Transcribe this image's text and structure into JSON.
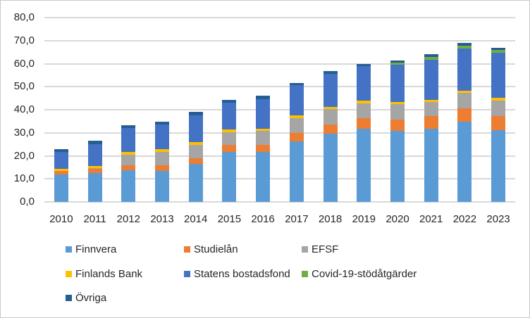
{
  "chart_data": {
    "type": "bar",
    "subtype": "stacked",
    "title": "",
    "xlabel": "",
    "ylabel": "",
    "categories": [
      "2010",
      "2011",
      "2012",
      "2013",
      "2014",
      "2015",
      "2016",
      "2017",
      "2018",
      "2019",
      "2020",
      "2021",
      "2022",
      "2023"
    ],
    "series": [
      {
        "name": "Finnvera",
        "color": "#5B9BD5",
        "values": [
          12.0,
          12.6,
          13.9,
          13.6,
          16.4,
          21.8,
          21.6,
          26.4,
          29.7,
          31.7,
          30.9,
          31.7,
          34.8,
          31.3
        ]
      },
      {
        "name": "Studielån",
        "color": "#ED7D31",
        "values": [
          1.5,
          1.7,
          2.1,
          2.2,
          2.4,
          2.8,
          3.2,
          3.4,
          3.8,
          4.8,
          4.9,
          5.5,
          5.9,
          6.1
        ]
      },
      {
        "name": "EFSF",
        "color": "#A5A5A5",
        "values": [
          0,
          0.5,
          4.5,
          6.0,
          6.0,
          5.7,
          6.1,
          6.6,
          6.7,
          6.4,
          6.6,
          6.1,
          6.5,
          6.7
        ]
      },
      {
        "name": "Finlands Bank",
        "color": "#FFC000",
        "values": [
          1.0,
          0.9,
          1.1,
          1.1,
          1.1,
          1.0,
          1.0,
          1.1,
          1.1,
          1.0,
          1.0,
          1.0,
          1.0,
          1.0
        ]
      },
      {
        "name": "Statens bostadsfond",
        "color": "#4472C4",
        "values": [
          7.2,
          9.5,
          10.4,
          10.8,
          11.8,
          11.8,
          12.8,
          13.1,
          14.4,
          15.0,
          16.2,
          17.3,
          18.5,
          19.5
        ]
      },
      {
        "name": "Covid-19-stödåtgärder",
        "color": "#70AD47",
        "values": [
          0,
          0,
          0,
          0,
          0,
          0,
          0,
          0,
          0,
          0,
          0.8,
          1.4,
          1.2,
          1.3
        ]
      },
      {
        "name": "Övriga",
        "color": "#255E91",
        "values": [
          1.1,
          1.3,
          1.2,
          1.0,
          1.3,
          1.3,
          1.3,
          1.0,
          1.2,
          1.1,
          1.0,
          1.0,
          1.0,
          1.0
        ]
      }
    ],
    "totals": [
      22.8,
      26.5,
      33.2,
      34.7,
      39.0,
      44.4,
      46.0,
      51.6,
      56.9,
      60.0,
      61.4,
      64.0,
      68.9,
      66.9
    ],
    "ylim": [
      0,
      80
    ],
    "ytick_step": 10,
    "ytick_labels": [
      "0,0",
      "10,0",
      "20,0",
      "30,0",
      "40,0",
      "50,0",
      "60,0",
      "70,0",
      "80,0"
    ],
    "grid": true,
    "gridline_color": "#D9D9D9",
    "legend_position": "bottom-left",
    "legend_rows": [
      [
        0,
        1,
        2
      ],
      [
        3,
        4,
        5
      ],
      [
        6
      ]
    ]
  }
}
